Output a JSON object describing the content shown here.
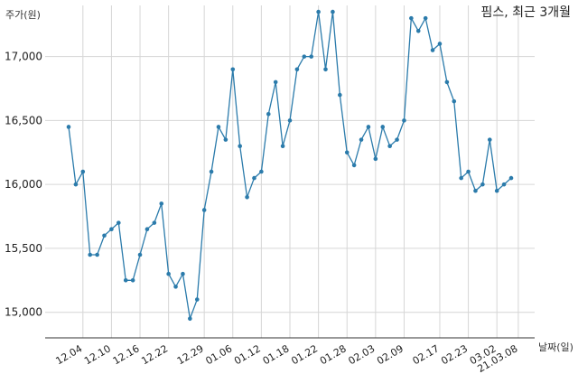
{
  "chart_data": {
    "type": "line",
    "title": "핌스, 최근 3개월",
    "ylabel": "주가(원)",
    "xlabel": "날짜(일)",
    "ylim": [
      14800,
      17400
    ],
    "y_ticks": [
      15000,
      15500,
      16000,
      16500,
      17000
    ],
    "y_tick_labels": [
      "15,000",
      "15,500",
      "16,000",
      "16,500",
      "17,000"
    ],
    "x_tick_labels": [
      "12.04",
      "12.10",
      "12.16",
      "12.22",
      "12.29",
      "01.06",
      "01.12",
      "01.18",
      "01.22",
      "01.28",
      "02.03",
      "02.09",
      "02.17",
      "02.23",
      "03.02",
      "21.03.08"
    ],
    "x_tick_indices": [
      2,
      6,
      10,
      14,
      19,
      23,
      27,
      31,
      35,
      39,
      43,
      47,
      52,
      56,
      60,
      63
    ],
    "grid": true,
    "line_color": "#2b7bab",
    "series": [
      {
        "values": [
          16450,
          16000,
          16100,
          15450,
          15450,
          15600,
          15650,
          15700,
          15250,
          15250,
          15450,
          15650,
          15700,
          15850,
          15300,
          15200,
          15300,
          14950,
          15100,
          15800,
          16100,
          16450,
          16350,
          16900,
          16300,
          15900,
          16050,
          16100,
          16550,
          16800,
          16300,
          16500,
          16900,
          17000,
          17000,
          17350,
          16900,
          17350,
          16700,
          16250,
          16150,
          16350,
          16450,
          16200,
          16450,
          16300,
          16350,
          16500,
          17300,
          17200,
          17300,
          17050,
          17100,
          16800,
          16650,
          16050,
          16100,
          15950,
          16000,
          16350,
          15950,
          16000,
          16050
        ]
      }
    ]
  }
}
